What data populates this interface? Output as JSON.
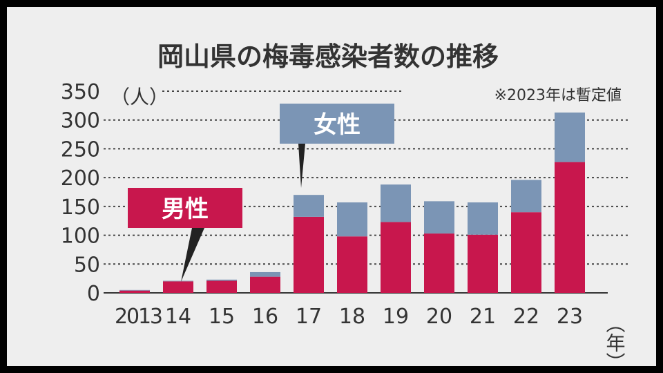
{
  "chart_data": {
    "type": "bar",
    "stacked": true,
    "title": "岡山県の梅毒感染者数の推移",
    "note": "※2023年は暫定値",
    "y_unit": "（人）",
    "x_unit": "（年）",
    "categories": [
      "2013",
      "14",
      "15",
      "16",
      "17",
      "18",
      "19",
      "20",
      "21",
      "22",
      "23"
    ],
    "series": [
      {
        "name": "男性",
        "color": "#c8174d",
        "values": [
          4,
          20,
          21,
          28,
          132,
          98,
          123,
          103,
          101,
          140,
          227
        ]
      },
      {
        "name": "女性",
        "color": "#7b95b5",
        "values": [
          1,
          1,
          2,
          8,
          38,
          59,
          65,
          56,
          56,
          56,
          86
        ]
      }
    ],
    "ylim": [
      0,
      350
    ],
    "yticks": [
      "0",
      "50",
      "100",
      "150",
      "200",
      "250",
      "300",
      "350"
    ],
    "grid": true,
    "grid_style": "dotted",
    "legend": "inline-callouts"
  }
}
